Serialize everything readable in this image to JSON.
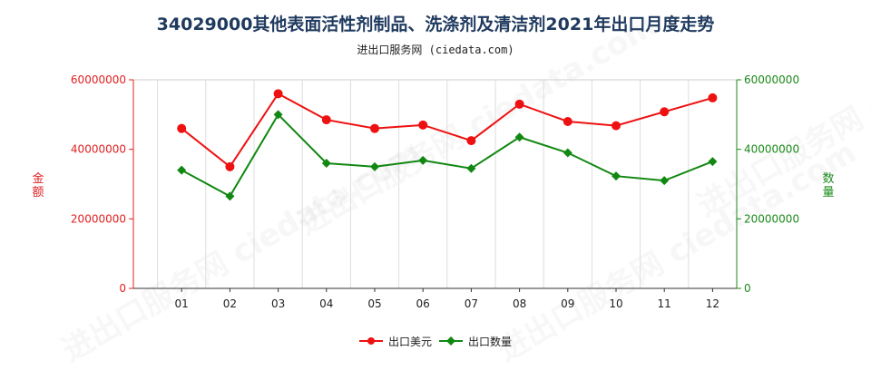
{
  "title": "34029000其他表面活性剂制品、洗涤剂及清洁剂2021年出口月度走势",
  "subtitle": "进出口服务网 (ciedata.com)",
  "left_axis_label": "金额",
  "right_axis_label": "数量",
  "legend": {
    "usd": "出口美元",
    "qty": "出口数量"
  },
  "watermark": "进出口服务网 ciedata.com",
  "colors": {
    "usd": "#ee1111",
    "qty": "#118811",
    "left_axis": "#e02020",
    "right_axis": "#1a8a1a"
  },
  "chart_data": {
    "type": "line",
    "categories": [
      "01",
      "02",
      "03",
      "04",
      "05",
      "06",
      "07",
      "08",
      "09",
      "10",
      "11",
      "12"
    ],
    "left_ticks": [
      "0",
      "20000000",
      "40000000",
      "60000000"
    ],
    "right_ticks": [
      "0",
      "20000000",
      "40000000",
      "60000000"
    ],
    "ylim": [
      0,
      60000000
    ],
    "grid": "vertical",
    "legend_position": "bottom",
    "series": [
      {
        "name": "出口美元",
        "axis": "left",
        "marker": "circle",
        "values": [
          46000000,
          35000000,
          56000000,
          48500000,
          46000000,
          47000000,
          42500000,
          53000000,
          48000000,
          46800000,
          50800000,
          54800000
        ]
      },
      {
        "name": "出口数量",
        "axis": "right",
        "marker": "diamond",
        "values": [
          34000000,
          26500000,
          50000000,
          36000000,
          35000000,
          36800000,
          34500000,
          43500000,
          39000000,
          32300000,
          31000000,
          36500000
        ]
      }
    ]
  }
}
